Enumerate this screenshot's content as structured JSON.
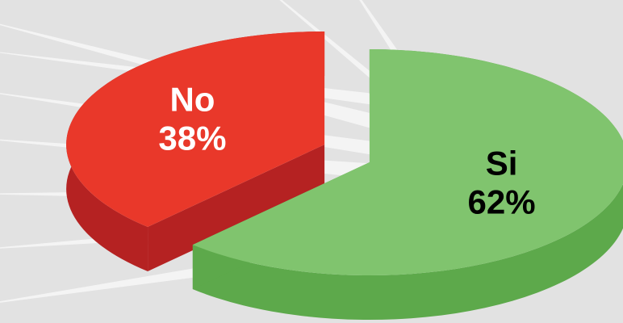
{
  "chart_data": {
    "type": "pie",
    "categories": [
      "No",
      "Si"
    ],
    "values": [
      38,
      62
    ],
    "value_labels": [
      "38%",
      "62%"
    ],
    "colors": [
      "#e9382a",
      "#80c46e"
    ],
    "side_colors": [
      "#b52222",
      "#5da94b"
    ],
    "label_colors": [
      "#ffffff",
      "#000000"
    ]
  }
}
